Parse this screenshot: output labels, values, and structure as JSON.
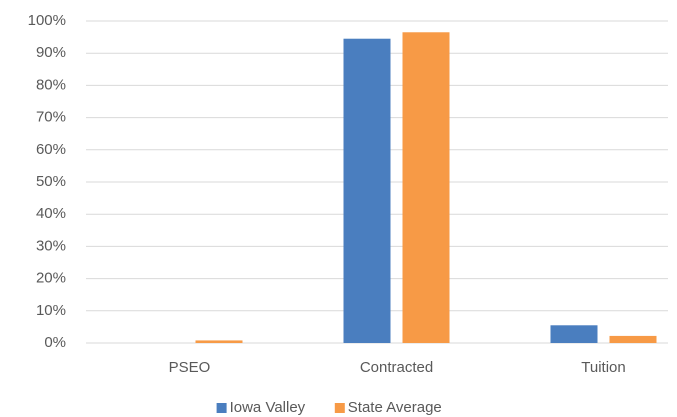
{
  "chart_data": {
    "type": "bar",
    "categories": [
      "PSEO",
      "Contracted",
      "Tuition"
    ],
    "series": [
      {
        "name": "Iowa Valley",
        "color": "#4a7ebf",
        "values": [
          0,
          94.5,
          5.5
        ]
      },
      {
        "name": "State Average",
        "color": "#f79a46",
        "values": [
          0.8,
          96.5,
          2.2
        ]
      }
    ],
    "ylim": [
      0,
      100
    ],
    "yticks": [
      {
        "value": 0,
        "label": "0%"
      },
      {
        "value": 10,
        "label": "10%"
      },
      {
        "value": 20,
        "label": "20%"
      },
      {
        "value": 30,
        "label": "30%"
      },
      {
        "value": 40,
        "label": "40%"
      },
      {
        "value": 50,
        "label": "50%"
      },
      {
        "value": 60,
        "label": "60%"
      },
      {
        "value": 70,
        "label": "70%"
      },
      {
        "value": 80,
        "label": "80%"
      },
      {
        "value": 90,
        "label": "90%"
      },
      {
        "value": 100,
        "label": "100%"
      }
    ],
    "grid": true,
    "legend": "bottom"
  }
}
